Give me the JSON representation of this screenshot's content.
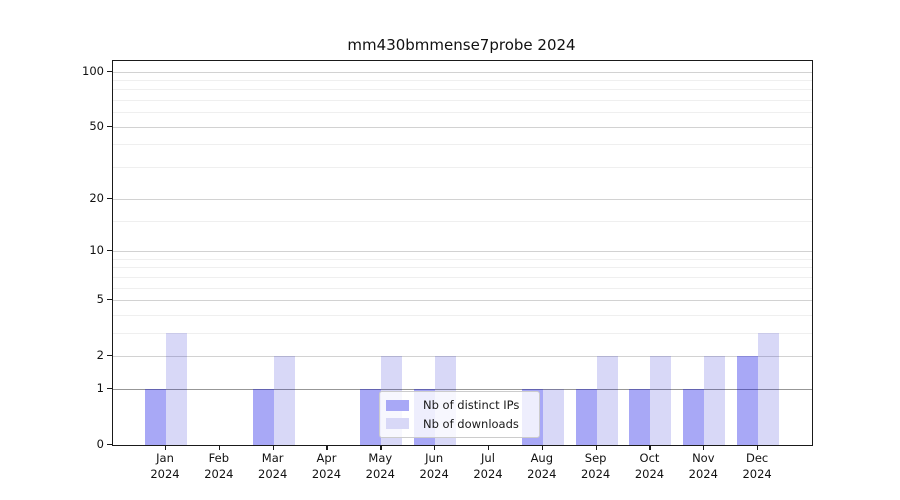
{
  "chart_data": {
    "type": "bar",
    "title": "mm430bmmense7probe 2024",
    "categories": [
      "Jan",
      "Feb",
      "Mar",
      "Apr",
      "May",
      "Jun",
      "Jul",
      "Aug",
      "Sep",
      "Oct",
      "Nov",
      "Dec"
    ],
    "xtick_year": "2024",
    "series": [
      {
        "name": "Nb of distinct IPs",
        "short": "distinct-ips",
        "color": "#a8a8f6",
        "color_rgba": "rgba(0,0,230,0.34)",
        "values": [
          1,
          0,
          1,
          0,
          1,
          1,
          0,
          1,
          1,
          1,
          1,
          2
        ]
      },
      {
        "name": "Nb of downloads",
        "short": "downloads",
        "color": "#d8d8f7",
        "color_rgba": "rgba(0,0,200,0.153)",
        "values": [
          3,
          0,
          2,
          0,
          2,
          2,
          0,
          1,
          2,
          2,
          2,
          3
        ]
      }
    ],
    "xlabel": "",
    "ylabel": "",
    "yscale": "log1p",
    "ylim": [
      0,
      114
    ],
    "yticks": [
      0,
      1,
      2,
      5,
      10,
      20,
      50,
      100
    ],
    "yticks_minor": [
      3,
      4,
      6,
      7,
      8,
      9,
      15,
      30,
      40,
      60,
      70,
      80,
      90
    ],
    "grid": true,
    "legend_position": "lower-center-inside"
  }
}
